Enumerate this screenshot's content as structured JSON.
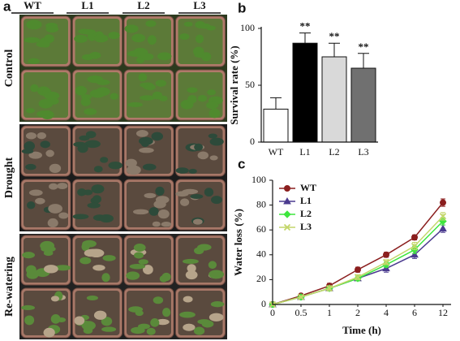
{
  "panel_a": {
    "label": "a",
    "columns": [
      "WT",
      "L1",
      "L2",
      "L3"
    ],
    "rows": [
      "Control",
      "Drought",
      "Re-watering"
    ]
  },
  "chart_data": [
    {
      "type": "bar",
      "label": "b",
      "ylabel": "Survival rate (%)",
      "categories": [
        "WT",
        "L1",
        "L2",
        "L3"
      ],
      "values": [
        29,
        87,
        75,
        65
      ],
      "errors": [
        10,
        9,
        12,
        13
      ],
      "colors": [
        "#ffffff",
        "#000000",
        "#d9d9d9",
        "#707070"
      ],
      "annotations": [
        null,
        "**",
        "**",
        "**"
      ],
      "ylim": [
        0,
        100
      ],
      "yticks": [
        0,
        50,
        100
      ],
      "grid": false
    },
    {
      "type": "line",
      "label": "c",
      "xlabel": "Time (h)",
      "ylabel": "Water loss (%)",
      "categories": [
        "0",
        "0.5",
        "1",
        "2",
        "4",
        "6",
        "12"
      ],
      "series": [
        {
          "name": "WT",
          "color": "#8b1f1f",
          "marker": "circle",
          "values": [
            0,
            7,
            15,
            28,
            40,
            54,
            82
          ],
          "errors": [
            1,
            1,
            2,
            2,
            2,
            2,
            3
          ]
        },
        {
          "name": "L1",
          "color": "#4b3b8f",
          "marker": "triangle",
          "values": [
            0,
            6,
            13,
            21,
            29,
            40,
            61
          ],
          "errors": [
            1,
            1,
            2,
            2,
            3,
            3,
            3
          ]
        },
        {
          "name": "L2",
          "color": "#3ee63e",
          "marker": "diamond",
          "values": [
            0,
            6,
            13,
            21,
            32,
            44,
            67
          ],
          "errors": [
            1,
            1,
            2,
            2,
            2,
            3,
            3
          ]
        },
        {
          "name": "L3",
          "color": "#c3d66a",
          "marker": "cross",
          "values": [
            0,
            6,
            13,
            22,
            34,
            47,
            71
          ],
          "errors": [
            1,
            1,
            2,
            2,
            2,
            3,
            3
          ]
        }
      ],
      "legend": "upper-left",
      "ylim": [
        0,
        100
      ],
      "yticks": [
        0,
        20,
        40,
        60,
        80,
        100
      ],
      "grid": false
    }
  ]
}
